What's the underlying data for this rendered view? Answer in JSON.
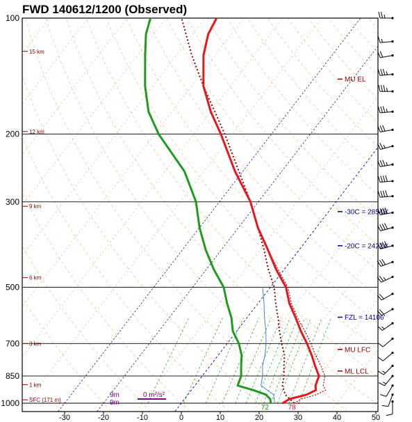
{
  "header": {
    "title": "FWD   140612/1200  (Observed)"
  },
  "chart_data": {
    "type": "skew-t",
    "pressure_ticks": [
      "100",
      "200",
      "300",
      "500",
      "700",
      "850",
      "1000"
    ],
    "temperature_ticks": [
      "-30",
      "-20",
      "-10",
      "0",
      "10",
      "20",
      "30",
      "40",
      "50"
    ],
    "height_labels": [
      "15 km",
      "12 km",
      "9 km",
      "6 km",
      "3 km",
      "1 km",
      "SFC (171 m)"
    ],
    "temperature_profile": [
      {
        "p": 1000,
        "t": 26
      },
      {
        "p": 975,
        "t": 27
      },
      {
        "p": 950,
        "t": 30.5
      },
      {
        "p": 925,
        "t": 32
      },
      {
        "p": 900,
        "t": 31
      },
      {
        "p": 850,
        "t": 30
      },
      {
        "p": 800,
        "t": 27
      },
      {
        "p": 750,
        "t": 24
      },
      {
        "p": 700,
        "t": 20.5
      },
      {
        "p": 650,
        "t": 16.5
      },
      {
        "p": 600,
        "t": 12.5
      },
      {
        "p": 550,
        "t": 8
      },
      {
        "p": 500,
        "t": 4
      },
      {
        "p": 450,
        "t": -2
      },
      {
        "p": 400,
        "t": -8
      },
      {
        "p": 350,
        "t": -15
      },
      {
        "p": 300,
        "t": -22
      },
      {
        "p": 250,
        "t": -32
      },
      {
        "p": 200,
        "t": -43
      },
      {
        "p": 175,
        "t": -50
      },
      {
        "p": 150,
        "t": -57
      },
      {
        "p": 125,
        "t": -63
      },
      {
        "p": 110,
        "t": -66
      },
      {
        "p": 100,
        "t": -67
      }
    ],
    "dewpoint_profile": [
      {
        "p": 1000,
        "t": 23
      },
      {
        "p": 975,
        "t": 22
      },
      {
        "p": 950,
        "t": 20
      },
      {
        "p": 925,
        "t": 16
      },
      {
        "p": 900,
        "t": 11
      },
      {
        "p": 850,
        "t": 10
      },
      {
        "p": 800,
        "t": 8
      },
      {
        "p": 750,
        "t": 6
      },
      {
        "p": 700,
        "t": 3
      },
      {
        "p": 650,
        "t": -1
      },
      {
        "p": 600,
        "t": -4
      },
      {
        "p": 550,
        "t": -8
      },
      {
        "p": 500,
        "t": -12
      },
      {
        "p": 450,
        "t": -18
      },
      {
        "p": 400,
        "t": -24
      },
      {
        "p": 350,
        "t": -30
      },
      {
        "p": 300,
        "t": -36
      },
      {
        "p": 250,
        "t": -45
      },
      {
        "p": 200,
        "t": -59
      },
      {
        "p": 175,
        "t": -66
      },
      {
        "p": 150,
        "t": -72
      },
      {
        "p": 125,
        "t": -78
      },
      {
        "p": 110,
        "t": -82
      },
      {
        "p": 100,
        "t": -84
      }
    ],
    "virtual_temperature_profile": [
      {
        "p": 1000,
        "t": 29
      },
      {
        "p": 975,
        "t": 30
      },
      {
        "p": 950,
        "t": 33
      },
      {
        "p": 925,
        "t": 34.5
      },
      {
        "p": 900,
        "t": 33
      },
      {
        "p": 850,
        "t": 31.5
      },
      {
        "p": 800,
        "t": 28.5
      },
      {
        "p": 750,
        "t": 25
      },
      {
        "p": 700,
        "t": 21.5
      },
      {
        "p": 650,
        "t": 17.5
      },
      {
        "p": 600,
        "t": 13
      },
      {
        "p": 550,
        "t": 8.5
      },
      {
        "p": 500,
        "t": 4.5
      },
      {
        "p": 450,
        "t": -1.5
      },
      {
        "p": 400,
        "t": -8
      },
      {
        "p": 350,
        "t": -15
      },
      {
        "p": 300,
        "t": -22
      },
      {
        "p": 250,
        "t": -32
      },
      {
        "p": 200,
        "t": -43
      },
      {
        "p": 175,
        "t": -50
      },
      {
        "p": 150,
        "t": -57
      },
      {
        "p": 125,
        "t": -63
      },
      {
        "p": 110,
        "t": -66
      },
      {
        "p": 100,
        "t": -67
      }
    ],
    "parcel_trace": [
      {
        "p": 1000,
        "t": 29
      },
      {
        "p": 950,
        "t": 25
      },
      {
        "p": 900,
        "t": 22.5
      },
      {
        "p": 850,
        "t": 21
      },
      {
        "p": 800,
        "t": 19
      },
      {
        "p": 750,
        "t": 17
      },
      {
        "p": 700,
        "t": 14
      },
      {
        "p": 650,
        "t": 11
      },
      {
        "p": 600,
        "t": 8
      },
      {
        "p": 550,
        "t": 4.5
      },
      {
        "p": 500,
        "t": 1
      },
      {
        "p": 450,
        "t": -4
      },
      {
        "p": 400,
        "t": -9
      },
      {
        "p": 350,
        "t": -15
      },
      {
        "p": 300,
        "t": -22
      },
      {
        "p": 250,
        "t": -31
      },
      {
        "p": 200,
        "t": -42
      },
      {
        "p": 150,
        "t": -57
      },
      {
        "p": 125,
        "t": -66
      },
      {
        "p": 100,
        "t": -76
      }
    ],
    "wetbulb_profile": [
      {
        "p": 1000,
        "t": 24
      },
      {
        "p": 950,
        "t": 22
      },
      {
        "p": 900,
        "t": 17
      },
      {
        "p": 850,
        "t": 15.5
      },
      {
        "p": 800,
        "t": 13.5
      },
      {
        "p": 750,
        "t": 12
      },
      {
        "p": 700,
        "t": 10
      },
      {
        "p": 650,
        "t": 7.5
      },
      {
        "p": 600,
        "t": 4.5
      },
      {
        "p": 550,
        "t": 1.5
      },
      {
        "p": 500,
        "t": -2
      }
    ],
    "level_markers": [
      {
        "label": "MU  EL",
        "p": 144,
        "color": "#8b0000"
      },
      {
        "label": "-30C = 28548'",
        "p": 318,
        "color": "#00008b"
      },
      {
        "label": "-20C = 24224'",
        "p": 390,
        "color": "#00008b"
      },
      {
        "label": "FZL = 14106'",
        "p": 598,
        "color": "#00008b"
      },
      {
        "label": "MU  LFC",
        "p": 725,
        "color": "#8b0000"
      },
      {
        "label": "ML  LCL",
        "p": 825,
        "color": "#8b0000"
      }
    ],
    "surface_labels": {
      "temp": "78",
      "dewpoint": "72"
    },
    "effective_inflow": {
      "label": "0 m²/s²"
    },
    "left_labels": [
      "9m",
      "9m"
    ],
    "wind_barbs": [
      {
        "p": 100,
        "dir": 270,
        "spd": 25
      },
      {
        "p": 115,
        "dir": 265,
        "spd": 15
      },
      {
        "p": 125,
        "dir": 260,
        "spd": 20
      },
      {
        "p": 140,
        "dir": 265,
        "spd": 35
      },
      {
        "p": 155,
        "dir": 270,
        "spd": 35
      },
      {
        "p": 175,
        "dir": 265,
        "spd": 35
      },
      {
        "p": 195,
        "dir": 260,
        "spd": 30
      },
      {
        "p": 215,
        "dir": 255,
        "spd": 25
      },
      {
        "p": 240,
        "dir": 260,
        "spd": 35
      },
      {
        "p": 265,
        "dir": 265,
        "spd": 40
      },
      {
        "p": 290,
        "dir": 265,
        "spd": 40
      },
      {
        "p": 320,
        "dir": 260,
        "spd": 40
      },
      {
        "p": 350,
        "dir": 255,
        "spd": 40
      },
      {
        "p": 390,
        "dir": 255,
        "spd": 40
      },
      {
        "p": 430,
        "dir": 250,
        "spd": 30
      },
      {
        "p": 470,
        "dir": 245,
        "spd": 25
      },
      {
        "p": 520,
        "dir": 240,
        "spd": 20
      },
      {
        "p": 570,
        "dir": 240,
        "spd": 20
      },
      {
        "p": 620,
        "dir": 235,
        "spd": 15
      },
      {
        "p": 680,
        "dir": 230,
        "spd": 10
      },
      {
        "p": 740,
        "dir": 230,
        "spd": 10
      },
      {
        "p": 800,
        "dir": 225,
        "spd": 15
      },
      {
        "p": 850,
        "dir": 220,
        "spd": 15
      },
      {
        "p": 900,
        "dir": 210,
        "spd": 10
      },
      {
        "p": 950,
        "dir": 200,
        "spd": 10
      },
      {
        "p": 990,
        "dir": 180,
        "spd": 10
      }
    ],
    "colors": {
      "temperature": "#e8141e",
      "dewpoint": "#1e9b1e",
      "virtual_temp": "#b30000",
      "parcel": "#8b0000",
      "wetbulb": "#4a7fd1",
      "isotherm_zero": "#0000cc",
      "dry_adiabat": "#f2b27a",
      "mixing_ratio": "#22aa22",
      "effective_inflow": "#800080"
    }
  }
}
